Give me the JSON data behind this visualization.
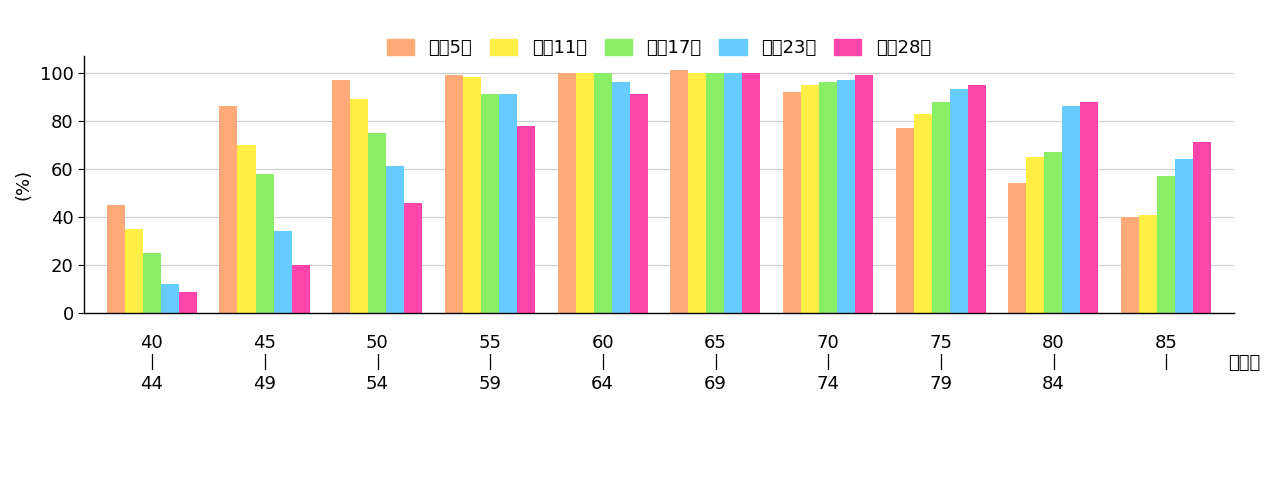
{
  "category_labels_top": [
    "40",
    "45",
    "50",
    "55",
    "60",
    "65",
    "70",
    "75",
    "80",
    "85"
  ],
  "category_labels_bot": [
    "44",
    "49",
    "54",
    "59",
    "64",
    "69",
    "74",
    "79",
    "84",
    ""
  ],
  "series": {
    "平成5年": [
      45,
      86,
      97,
      99,
      100,
      101,
      92,
      77,
      54,
      40
    ],
    "平成11年": [
      35,
      70,
      89,
      98,
      100,
      100,
      95,
      83,
      65,
      41
    ],
    "平成17年": [
      25,
      58,
      75,
      91,
      100,
      100,
      96,
      88,
      67,
      57
    ],
    "平成23年": [
      12,
      34,
      61,
      91,
      96,
      100,
      97,
      93,
      86,
      64
    ],
    "平成28年": [
      9,
      20,
      46,
      78,
      91,
      100,
      99,
      95,
      88,
      71
    ]
  },
  "series_order": [
    "平成5年",
    "平成11年",
    "平成17年",
    "平成23年",
    "平成28年"
  ],
  "colors": {
    "平成5年": "#FFAA77",
    "平成11年": "#FFEE44",
    "平成17年": "#88EE66",
    "平成23年": "#66CCFF",
    "平成28年": "#FF44AA"
  },
  "ylabel": "(%)",
  "xlabel_suffix": "（歳）",
  "ylim": [
    0,
    107
  ],
  "yticks": [
    0,
    20,
    40,
    60,
    80,
    100
  ],
  "bar_width": 0.16,
  "figsize": [
    12.76,
    4.98
  ],
  "dpi": 100
}
